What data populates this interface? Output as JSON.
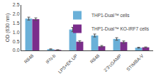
{
  "chart_data": {
    "type": "bar",
    "categories": [
      "R848",
      "IFN-b",
      "LPS+EK UP",
      "R848",
      "2'3'cGAMP",
      "STIMBA-V"
    ],
    "series": [
      {
        "name": "THP1-Dual™ cells",
        "color": "#6ab0d8",
        "values": [
          1.75,
          0.07,
          1.15,
          0.82,
          0.63,
          0.15
        ],
        "errors": [
          0.08,
          0.015,
          0.12,
          0.08,
          0.07,
          0.025
        ]
      },
      {
        "name": "THP1-Dual™ KO-IRF7 cells",
        "color": "#7b2d8b",
        "values": [
          1.72,
          0.03,
          0.48,
          0.23,
          0.46,
          0.17
        ],
        "errors": [
          0.07,
          0.01,
          0.055,
          0.04,
          0.06,
          0.02
        ]
      }
    ],
    "ylabel": "OD (630 nm)",
    "ylim": [
      0,
      2.5
    ],
    "yticks": [
      {
        "value": 0,
        "label": "0.0"
      },
      0.5,
      {
        "value": 1,
        "label": "1.0"
      },
      1.5,
      {
        "value": 2,
        "label": "2.0"
      },
      2.5
    ],
    "grid": false,
    "legend": "upper right"
  }
}
